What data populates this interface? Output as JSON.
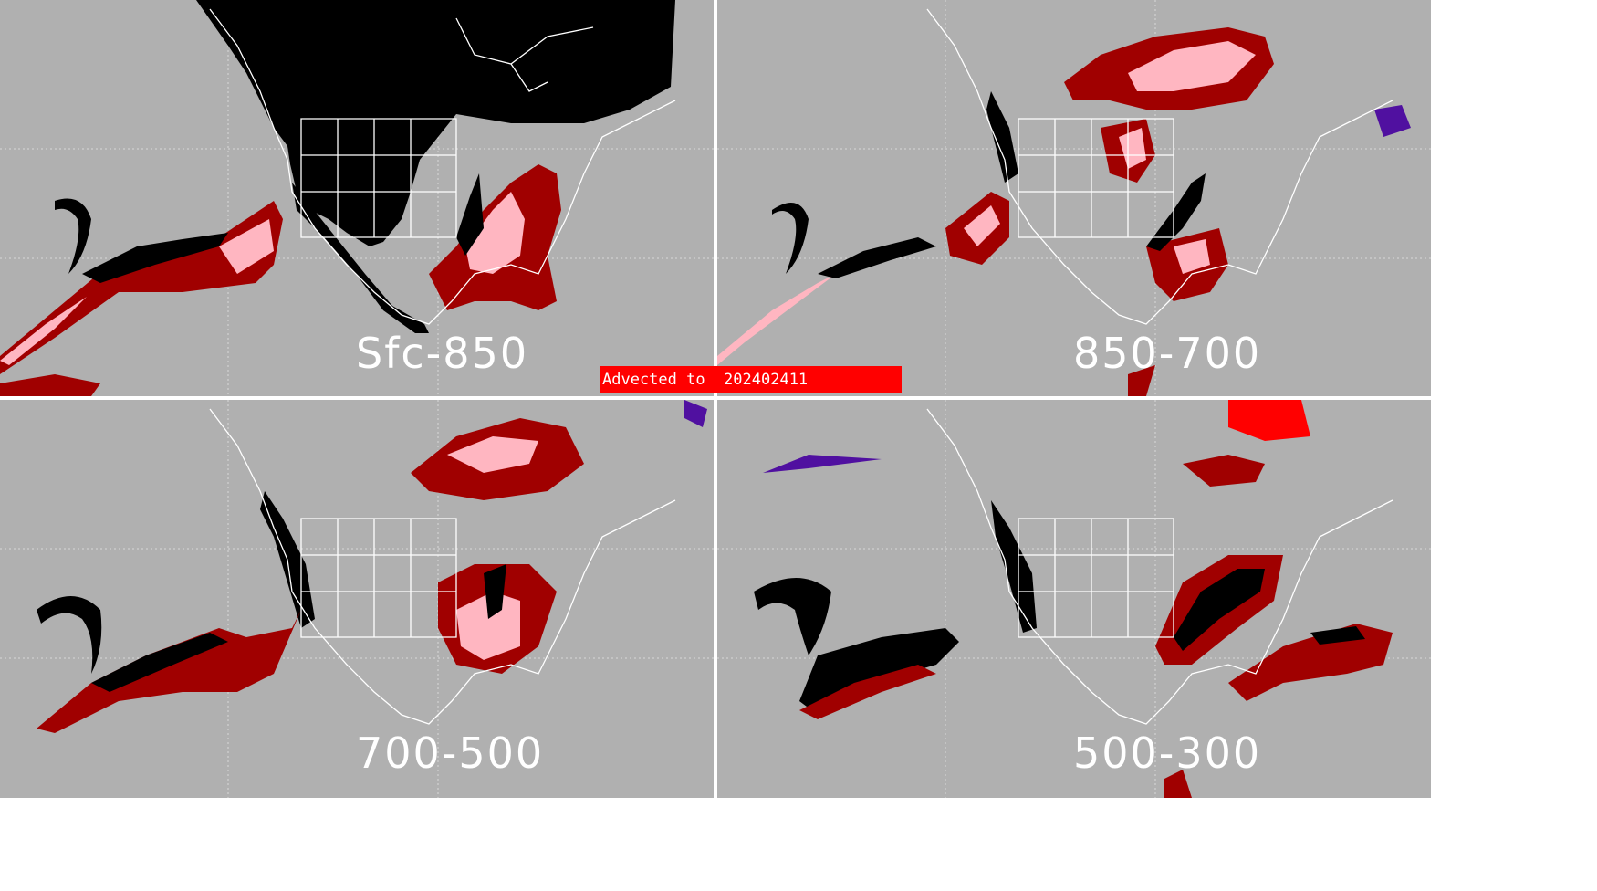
{
  "banner": {
    "text": "Advected to  202402411",
    "color": "#ff0000"
  },
  "panels": [
    {
      "id": "sfc-850",
      "label": "Sfc-850"
    },
    {
      "id": "850-700",
      "label": "850-700"
    },
    {
      "id": "700-500",
      "label": "700-500"
    },
    {
      "id": "500-300",
      "label": "500-300"
    }
  ],
  "colors": {
    "background": "#b0b0b0",
    "black_region": "#000000",
    "dark_red": "#a00000",
    "pink": "#ffb6c1",
    "red": "#ff0000",
    "purple": "#5010a0",
    "coastline": "#ffffff"
  }
}
